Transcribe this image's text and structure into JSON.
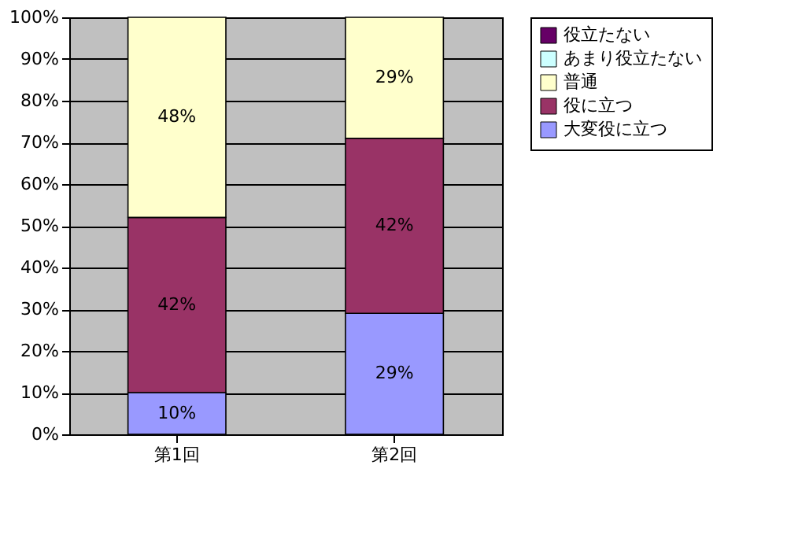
{
  "chart_data": {
    "type": "bar",
    "stacked": true,
    "categories": [
      "第1回",
      "第2回"
    ],
    "series": [
      {
        "name": "大変役に立つ",
        "color": "#9999ff",
        "values": [
          10,
          29
        ],
        "value_labels": [
          "10%",
          "29%"
        ]
      },
      {
        "name": "役に立つ",
        "color": "#993366",
        "values": [
          42,
          42
        ],
        "value_labels": [
          "42%",
          "42%"
        ]
      },
      {
        "name": "普通",
        "color": "#ffffcc",
        "values": [
          48,
          29
        ],
        "value_labels": [
          "48%",
          "29%"
        ]
      },
      {
        "name": "あまり役立たない",
        "color": "#ccffff",
        "values": [
          0,
          0
        ],
        "value_labels": [
          null,
          null
        ]
      },
      {
        "name": "役立たない",
        "color": "#660066",
        "values": [
          0,
          0
        ],
        "value_labels": [
          null,
          null
        ]
      }
    ],
    "ylim": [
      0,
      100
    ],
    "yticks": [
      {
        "value": 0,
        "label": "0%"
      },
      {
        "value": 10,
        "label": "10%"
      },
      {
        "value": 20,
        "label": "20%"
      },
      {
        "value": 30,
        "label": "30%"
      },
      {
        "value": 40,
        "label": "40%"
      },
      {
        "value": 50,
        "label": "50%"
      },
      {
        "value": 60,
        "label": "60%"
      },
      {
        "value": 70,
        "label": "70%"
      },
      {
        "value": 80,
        "label": "80%"
      },
      {
        "value": 90,
        "label": "90%"
      },
      {
        "value": 100,
        "label": "100%"
      }
    ],
    "grid": "y",
    "legend": "right"
  }
}
